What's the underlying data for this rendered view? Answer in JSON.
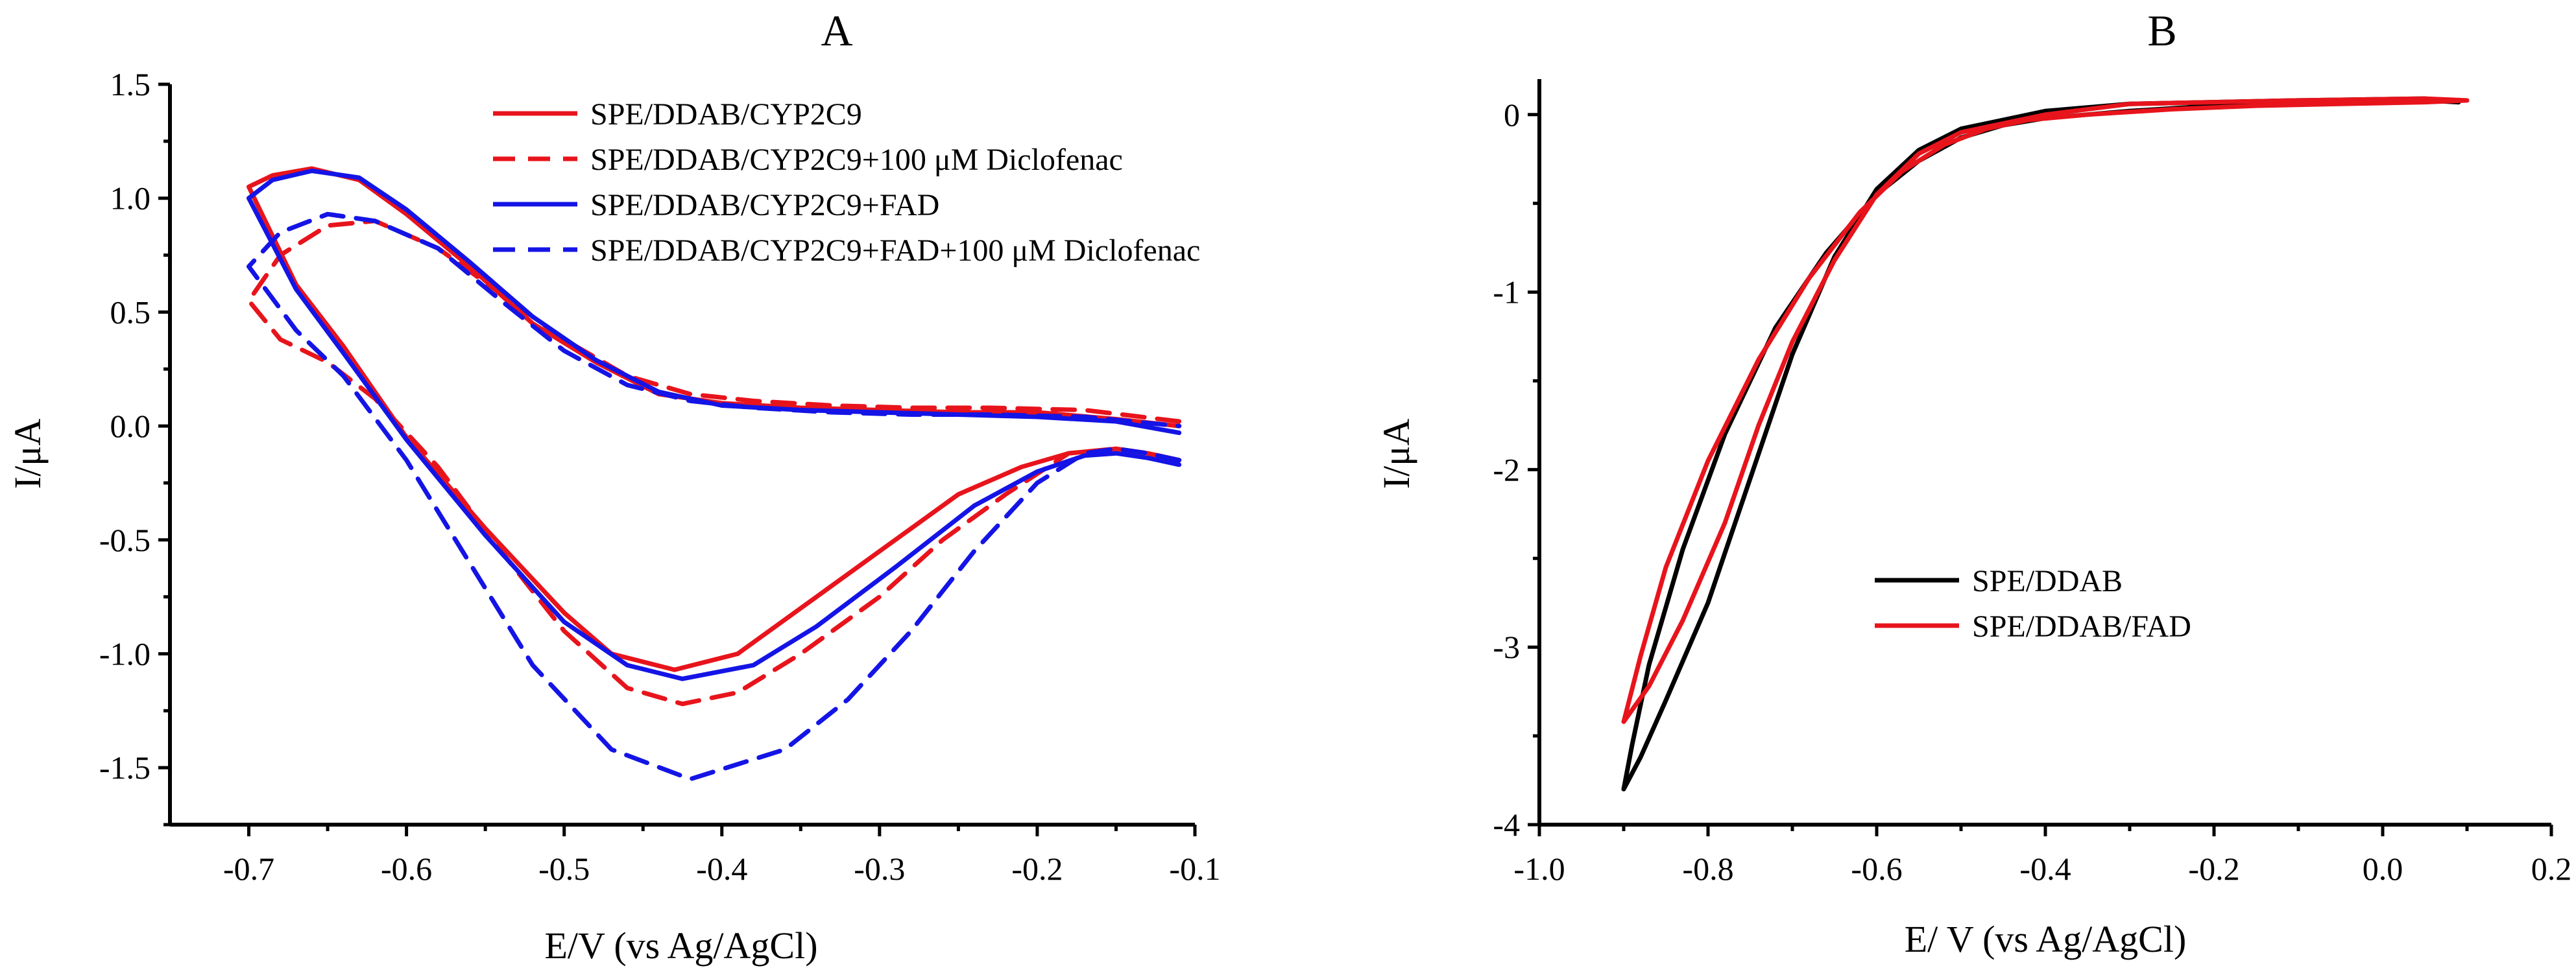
{
  "chart_data": [
    {
      "type": "line",
      "panel_label": "A",
      "xlabel": "E/V (vs Ag/AgCl)",
      "ylabel": "I/μA",
      "xlim": [
        -0.75,
        -0.1
      ],
      "ylim": [
        -1.75,
        1.5
      ],
      "x_ticks": [
        -0.7,
        -0.6,
        -0.5,
        -0.4,
        -0.3,
        -0.2,
        -0.1
      ],
      "x_tick_labels": [
        "-0.7",
        "-0.6",
        "-0.5",
        "-0.4",
        "-0.3",
        "-0.2",
        "-0.1"
      ],
      "y_ticks": [
        -1.5,
        -1.0,
        -0.5,
        0.0,
        0.5,
        1.0,
        1.5
      ],
      "y_tick_labels": [
        "-1.5",
        "-1.0",
        "-0.5",
        "0.0",
        "0.5",
        "1.0",
        "1.5"
      ],
      "legend_position": "top-right",
      "series": [
        {
          "name": "SPE/DDAB/CYP2C9",
          "color": "#e8141c",
          "dash": "solid",
          "points": [
            [
              -0.11,
              -0.15
            ],
            [
              -0.13,
              -0.12
            ],
            [
              -0.15,
              -0.1
            ],
            [
              -0.18,
              -0.12
            ],
            [
              -0.21,
              -0.18
            ],
            [
              -0.25,
              -0.3
            ],
            [
              -0.3,
              -0.55
            ],
            [
              -0.35,
              -0.8
            ],
            [
              -0.39,
              -1.0
            ],
            [
              -0.43,
              -1.07
            ],
            [
              -0.47,
              -1.0
            ],
            [
              -0.5,
              -0.82
            ],
            [
              -0.55,
              -0.45
            ],
            [
              -0.6,
              -0.05
            ],
            [
              -0.64,
              0.35
            ],
            [
              -0.67,
              0.62
            ],
            [
              -0.7,
              1.05
            ],
            [
              -0.685,
              1.1
            ],
            [
              -0.66,
              1.13
            ],
            [
              -0.63,
              1.08
            ],
            [
              -0.6,
              0.93
            ],
            [
              -0.56,
              0.7
            ],
            [
              -0.52,
              0.45
            ],
            [
              -0.48,
              0.28
            ],
            [
              -0.44,
              0.14
            ],
            [
              -0.4,
              0.1
            ],
            [
              -0.35,
              0.08
            ],
            [
              -0.3,
              0.07
            ],
            [
              -0.25,
              0.06
            ],
            [
              -0.2,
              0.06
            ],
            [
              -0.15,
              0.03
            ],
            [
              -0.11,
              0.0
            ]
          ]
        },
        {
          "name": "SPE/DDAB/CYP2C9+100 μM Diclofenac",
          "color": "#e8141c",
          "dash": "dashed",
          "points": [
            [
              -0.11,
              -0.15
            ],
            [
              -0.13,
              -0.12
            ],
            [
              -0.15,
              -0.1
            ],
            [
              -0.18,
              -0.12
            ],
            [
              -0.22,
              -0.3
            ],
            [
              -0.26,
              -0.5
            ],
            [
              -0.3,
              -0.75
            ],
            [
              -0.35,
              -1.0
            ],
            [
              -0.39,
              -1.17
            ],
            [
              -0.425,
              -1.22
            ],
            [
              -0.46,
              -1.15
            ],
            [
              -0.5,
              -0.9
            ],
            [
              -0.54,
              -0.55
            ],
            [
              -0.58,
              -0.18
            ],
            [
              -0.62,
              0.12
            ],
            [
              -0.65,
              0.28
            ],
            [
              -0.68,
              0.38
            ],
            [
              -0.7,
              0.55
            ],
            [
              -0.68,
              0.75
            ],
            [
              -0.65,
              0.88
            ],
            [
              -0.62,
              0.9
            ],
            [
              -0.58,
              0.78
            ],
            [
              -0.54,
              0.58
            ],
            [
              -0.5,
              0.38
            ],
            [
              -0.46,
              0.22
            ],
            [
              -0.42,
              0.14
            ],
            [
              -0.38,
              0.11
            ],
            [
              -0.33,
              0.09
            ],
            [
              -0.28,
              0.08
            ],
            [
              -0.23,
              0.08
            ],
            [
              -0.17,
              0.07
            ],
            [
              -0.11,
              0.02
            ]
          ]
        },
        {
          "name": "SPE/DDAB/CYP2C9+FAD",
          "color": "#1414e6",
          "dash": "solid",
          "points": [
            [
              -0.11,
              -0.17
            ],
            [
              -0.13,
              -0.14
            ],
            [
              -0.15,
              -0.12
            ],
            [
              -0.17,
              -0.13
            ],
            [
              -0.2,
              -0.2
            ],
            [
              -0.24,
              -0.35
            ],
            [
              -0.29,
              -0.62
            ],
            [
              -0.34,
              -0.88
            ],
            [
              -0.38,
              -1.05
            ],
            [
              -0.425,
              -1.11
            ],
            [
              -0.46,
              -1.05
            ],
            [
              -0.5,
              -0.86
            ],
            [
              -0.55,
              -0.48
            ],
            [
              -0.6,
              -0.06
            ],
            [
              -0.64,
              0.32
            ],
            [
              -0.67,
              0.6
            ],
            [
              -0.7,
              1.0
            ],
            [
              -0.685,
              1.08
            ],
            [
              -0.66,
              1.12
            ],
            [
              -0.63,
              1.09
            ],
            [
              -0.6,
              0.95
            ],
            [
              -0.56,
              0.72
            ],
            [
              -0.52,
              0.48
            ],
            [
              -0.48,
              0.29
            ],
            [
              -0.44,
              0.15
            ],
            [
              -0.4,
              0.09
            ],
            [
              -0.35,
              0.07
            ],
            [
              -0.3,
              0.06
            ],
            [
              -0.25,
              0.05
            ],
            [
              -0.2,
              0.04
            ],
            [
              -0.15,
              0.02
            ],
            [
              -0.11,
              -0.03
            ]
          ]
        },
        {
          "name": "SPE/DDAB/CYP2C9+FAD+100 μM Diclofenac",
          "color": "#1414e6",
          "dash": "dashed",
          "points": [
            [
              -0.11,
              -0.15
            ],
            [
              -0.13,
              -0.12
            ],
            [
              -0.15,
              -0.1
            ],
            [
              -0.17,
              -0.12
            ],
            [
              -0.2,
              -0.25
            ],
            [
              -0.24,
              -0.55
            ],
            [
              -0.28,
              -0.9
            ],
            [
              -0.32,
              -1.2
            ],
            [
              -0.36,
              -1.42
            ],
            [
              -0.42,
              -1.55
            ],
            [
              -0.47,
              -1.42
            ],
            [
              -0.52,
              -1.05
            ],
            [
              -0.56,
              -0.6
            ],
            [
              -0.6,
              -0.15
            ],
            [
              -0.64,
              0.22
            ],
            [
              -0.67,
              0.42
            ],
            [
              -0.7,
              0.7
            ],
            [
              -0.68,
              0.85
            ],
            [
              -0.65,
              0.93
            ],
            [
              -0.62,
              0.9
            ],
            [
              -0.58,
              0.78
            ],
            [
              -0.54,
              0.55
            ],
            [
              -0.5,
              0.33
            ],
            [
              -0.46,
              0.18
            ],
            [
              -0.42,
              0.11
            ],
            [
              -0.38,
              0.08
            ],
            [
              -0.33,
              0.06
            ],
            [
              -0.28,
              0.05
            ],
            [
              -0.23,
              0.05
            ],
            [
              -0.17,
              0.04
            ],
            [
              -0.11,
              0.0
            ]
          ]
        }
      ]
    },
    {
      "type": "line",
      "panel_label": "B",
      "xlabel": "E/ V (vs Ag/AgCl)",
      "ylabel": "I/μA",
      "xlim": [
        -1.0,
        0.2
      ],
      "ylim": [
        -4.0,
        0.2
      ],
      "x_ticks": [
        -1.0,
        -0.8,
        -0.6,
        -0.4,
        -0.2,
        0.0,
        0.2
      ],
      "x_tick_labels": [
        "-1.0",
        "-0.8",
        "-0.6",
        "-0.4",
        "-0.2",
        "0.0",
        "0.2"
      ],
      "y_ticks": [
        -4,
        -3,
        -2,
        -1,
        0
      ],
      "y_tick_labels": [
        "-4",
        "-3",
        "-2",
        "-1",
        "0"
      ],
      "legend_position": "lower-center",
      "series": [
        {
          "name": "SPE/DDAB",
          "color": "#000000",
          "dash": "solid",
          "points": [
            [
              0.09,
              0.07
            ],
            [
              0.05,
              0.09
            ],
            [
              -0.1,
              0.08
            ],
            [
              -0.3,
              0.06
            ],
            [
              -0.4,
              0.02
            ],
            [
              -0.5,
              -0.08
            ],
            [
              -0.55,
              -0.2
            ],
            [
              -0.6,
              -0.42
            ],
            [
              -0.65,
              -0.8
            ],
            [
              -0.7,
              -1.35
            ],
            [
              -0.75,
              -2.05
            ],
            [
              -0.8,
              -2.75
            ],
            [
              -0.85,
              -3.3
            ],
            [
              -0.88,
              -3.62
            ],
            [
              -0.9,
              -3.8
            ],
            [
              -0.89,
              -3.55
            ],
            [
              -0.87,
              -3.1
            ],
            [
              -0.83,
              -2.45
            ],
            [
              -0.78,
              -1.8
            ],
            [
              -0.72,
              -1.2
            ],
            [
              -0.66,
              -0.78
            ],
            [
              -0.6,
              -0.45
            ],
            [
              -0.55,
              -0.26
            ],
            [
              -0.5,
              -0.13
            ],
            [
              -0.45,
              -0.06
            ],
            [
              -0.4,
              -0.02
            ],
            [
              -0.3,
              0.02
            ],
            [
              -0.2,
              0.05
            ],
            [
              -0.1,
              0.06
            ],
            [
              0.0,
              0.07
            ],
            [
              0.05,
              0.08
            ],
            [
              0.09,
              0.07
            ]
          ]
        },
        {
          "name": "SPE/DDAB/FAD",
          "color": "#e8141c",
          "dash": "solid",
          "points": [
            [
              0.1,
              0.08
            ],
            [
              0.05,
              0.09
            ],
            [
              -0.1,
              0.08
            ],
            [
              -0.3,
              0.06
            ],
            [
              -0.4,
              0.0
            ],
            [
              -0.5,
              -0.1
            ],
            [
              -0.55,
              -0.22
            ],
            [
              -0.6,
              -0.45
            ],
            [
              -0.65,
              -0.82
            ],
            [
              -0.7,
              -1.28
            ],
            [
              -0.74,
              -1.75
            ],
            [
              -0.78,
              -2.3
            ],
            [
              -0.83,
              -2.85
            ],
            [
              -0.87,
              -3.22
            ],
            [
              -0.9,
              -3.42
            ],
            [
              -0.88,
              -3.05
            ],
            [
              -0.85,
              -2.55
            ],
            [
              -0.8,
              -1.95
            ],
            [
              -0.74,
              -1.38
            ],
            [
              -0.68,
              -0.92
            ],
            [
              -0.62,
              -0.55
            ],
            [
              -0.57,
              -0.32
            ],
            [
              -0.52,
              -0.17
            ],
            [
              -0.47,
              -0.08
            ],
            [
              -0.42,
              -0.03
            ],
            [
              -0.35,
              0.0
            ],
            [
              -0.25,
              0.03
            ],
            [
              -0.15,
              0.05
            ],
            [
              -0.05,
              0.06
            ],
            [
              0.05,
              0.07
            ],
            [
              0.1,
              0.08
            ]
          ]
        }
      ]
    }
  ]
}
